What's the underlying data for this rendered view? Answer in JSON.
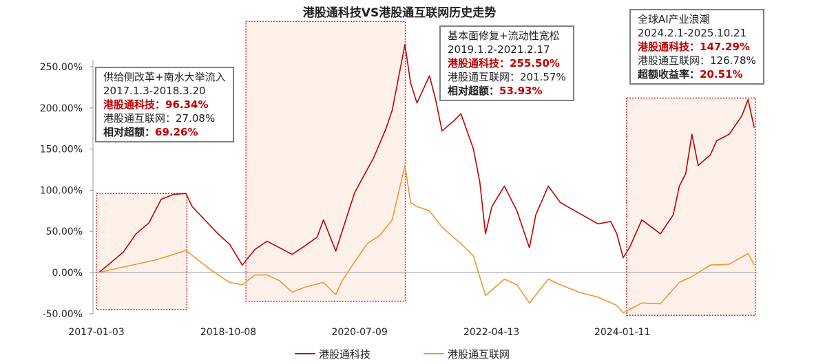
{
  "chart_data": {
    "type": "line",
    "title": "港股通科技VS港股通互联网历史走势",
    "xlabel": "",
    "ylabel": "",
    "x_ticks": [
      "2017-01-03",
      "2018-10-08",
      "2020-07-09",
      "2022-04-13",
      "2024-01-11"
    ],
    "y_ticks": [
      "-50.00%",
      "0.00%",
      "50.00%",
      "100.00%",
      "150.00%",
      "200.00%",
      "250.00%"
    ],
    "ylim": [
      -50,
      250
    ],
    "xlim": [
      "2017-01-03",
      "2025-10-21"
    ],
    "grid": false,
    "legend": "bottom",
    "colors": {
      "tech": "#c00000",
      "internet": "#f7932f",
      "shade": "#fdf1ea",
      "shade_border": "#e02020"
    },
    "series": [
      {
        "name": "港股通科技",
        "color": "#c00000",
        "points": [
          [
            "2017-01",
            0
          ],
          [
            "2017-03",
            12
          ],
          [
            "2017-05",
            25
          ],
          [
            "2017-07",
            47
          ],
          [
            "2017-09",
            60
          ],
          [
            "2017-11",
            89
          ],
          [
            "2018-01",
            95
          ],
          [
            "2018-03",
            96
          ],
          [
            "2018-04",
            80
          ],
          [
            "2018-06",
            64
          ],
          [
            "2018-08",
            48
          ],
          [
            "2018-10",
            34
          ],
          [
            "2018-12",
            9
          ],
          [
            "2019-02",
            28
          ],
          [
            "2019-04",
            38
          ],
          [
            "2019-06",
            30
          ],
          [
            "2019-08",
            22
          ],
          [
            "2019-10",
            32
          ],
          [
            "2019-12",
            43
          ],
          [
            "2020-01",
            64
          ],
          [
            "2020-03",
            26
          ],
          [
            "2020-04",
            50
          ],
          [
            "2020-06",
            97
          ],
          [
            "2020-08",
            125
          ],
          [
            "2020-09",
            139
          ],
          [
            "2020-11",
            175
          ],
          [
            "2020-12",
            197
          ],
          [
            "2021-02",
            277
          ],
          [
            "2021-03",
            230
          ],
          [
            "2021-04",
            206
          ],
          [
            "2021-06",
            239
          ],
          [
            "2021-07",
            210
          ],
          [
            "2021-08",
            172
          ],
          [
            "2021-10",
            185
          ],
          [
            "2021-11",
            193
          ],
          [
            "2022-01",
            150
          ],
          [
            "2022-02",
            110
          ],
          [
            "2022-03",
            47
          ],
          [
            "2022-04",
            80
          ],
          [
            "2022-06",
            105
          ],
          [
            "2022-08",
            75
          ],
          [
            "2022-10",
            30
          ],
          [
            "2022-11",
            70
          ],
          [
            "2023-01",
            105
          ],
          [
            "2023-03",
            85
          ],
          [
            "2023-06",
            72
          ],
          [
            "2023-09",
            59
          ],
          [
            "2023-11",
            62
          ],
          [
            "2023-12",
            47
          ],
          [
            "2024-01",
            18
          ],
          [
            "2024-02",
            30
          ],
          [
            "2024-04",
            64
          ],
          [
            "2024-07",
            47
          ],
          [
            "2024-09",
            70
          ],
          [
            "2024-10",
            105
          ],
          [
            "2024-11",
            120
          ],
          [
            "2024-12",
            168
          ],
          [
            "2025-01",
            130
          ],
          [
            "2025-03",
            143
          ],
          [
            "2025-04",
            160
          ],
          [
            "2025-06",
            168
          ],
          [
            "2025-08",
            190
          ],
          [
            "2025-09",
            210
          ],
          [
            "2025-10",
            176
          ]
        ]
      },
      {
        "name": "港股通互联网",
        "color": "#f7932f",
        "points": [
          [
            "2017-01",
            0
          ],
          [
            "2017-04",
            5
          ],
          [
            "2017-07",
            10
          ],
          [
            "2017-10",
            15
          ],
          [
            "2018-01",
            22
          ],
          [
            "2018-03",
            27
          ],
          [
            "2018-05",
            15
          ],
          [
            "2018-07",
            3
          ],
          [
            "2018-10",
            -12
          ],
          [
            "2018-12",
            -15
          ],
          [
            "2019-02",
            -3
          ],
          [
            "2019-04",
            -3
          ],
          [
            "2019-06",
            -10
          ],
          [
            "2019-08",
            -24
          ],
          [
            "2019-10",
            -18
          ],
          [
            "2020-01",
            -12
          ],
          [
            "2020-03",
            -27
          ],
          [
            "2020-04",
            -10
          ],
          [
            "2020-06",
            13
          ],
          [
            "2020-08",
            35
          ],
          [
            "2020-10",
            45
          ],
          [
            "2020-12",
            64
          ],
          [
            "2021-02",
            130
          ],
          [
            "2021-03",
            85
          ],
          [
            "2021-04",
            80
          ],
          [
            "2021-06",
            75
          ],
          [
            "2021-08",
            55
          ],
          [
            "2021-11",
            35
          ],
          [
            "2022-01",
            20
          ],
          [
            "2022-03",
            -28
          ],
          [
            "2022-06",
            -8
          ],
          [
            "2022-08",
            -15
          ],
          [
            "2022-10",
            -37
          ],
          [
            "2023-01",
            -8
          ],
          [
            "2023-03",
            -15
          ],
          [
            "2023-06",
            -24
          ],
          [
            "2023-09",
            -30
          ],
          [
            "2023-12",
            -40
          ],
          [
            "2024-01",
            -49
          ],
          [
            "2024-04",
            -37
          ],
          [
            "2024-07",
            -38
          ],
          [
            "2024-10",
            -12
          ],
          [
            "2024-12",
            -5
          ],
          [
            "2025-03",
            9
          ],
          [
            "2025-06",
            10
          ],
          [
            "2025-09",
            23
          ],
          [
            "2025-10",
            9
          ]
        ]
      }
    ],
    "periods": [
      {
        "start": "2017-01-03",
        "end": "2018-03-20",
        "top": 96,
        "bottom": -45
      },
      {
        "start": "2019-01-02",
        "end": "2021-02-17",
        "top": 305,
        "bottom": -35
      },
      {
        "start": "2024-02-01",
        "end": "2025-10-21",
        "top": 212,
        "bottom": -52
      }
    ]
  },
  "annotations": [
    {
      "title": "供给侧改革+南水大举流入",
      "dates": "2017.1.3-2018.3.20",
      "line1_label": "港股通科技：",
      "line1_value": "96.34%",
      "line2": "港股通互联网：27.08%",
      "line3_label": "相对超额：",
      "line3_value": "69.26%"
    },
    {
      "title": "基本面修复+流动性宽松",
      "dates": "2019.1.2-2021.2.17",
      "line1_label": "港股通科技：",
      "line1_value": "255.50%",
      "line2": "港股通互联网：201.57%",
      "line3_label": "相对超额：",
      "line3_value": "53.93%"
    },
    {
      "title": "全球AI产业浪潮",
      "dates": "2024.2.1-2025.10.21",
      "line1_label": "港股通科技：",
      "line1_value": "147.29%",
      "line2": "港股通互联网：126.78%",
      "line3_label": "超额收益率：",
      "line3_value": "20.51%"
    }
  ]
}
